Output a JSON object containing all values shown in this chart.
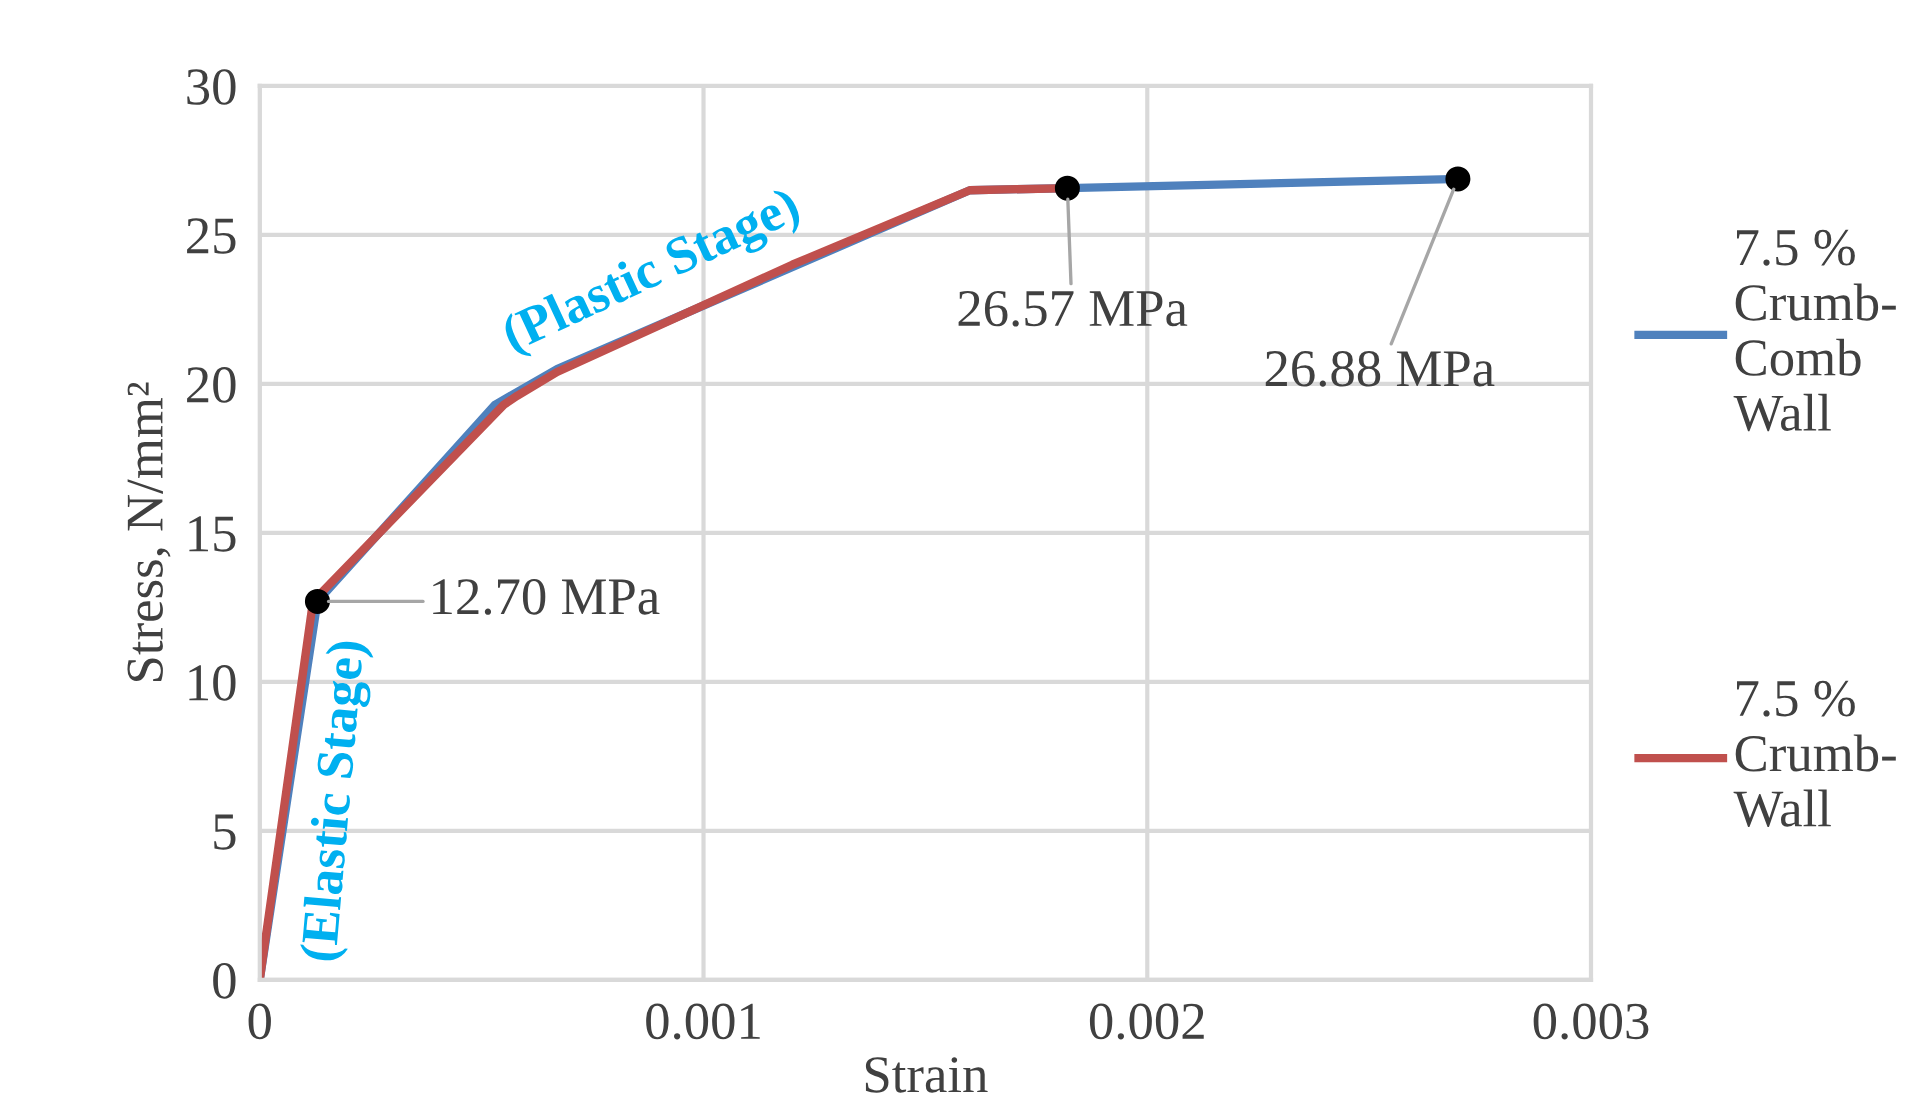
{
  "chart_data": {
    "type": "line",
    "xlabel": "Strain",
    "ylabel": "Stress, N/mm²",
    "xlim": [
      0,
      0.003
    ],
    "xticks": [
      0,
      0.001,
      0.002,
      0.003
    ],
    "ylim": [
      0,
      30
    ],
    "yticks": [
      0,
      5,
      10,
      15,
      20,
      25,
      30
    ],
    "grid": true,
    "legend": "right",
    "marker": "none",
    "line_style": "solid",
    "series": [
      {
        "name": "7.5 % Crumb-Comb Wall",
        "color": "#4f81bd",
        "x": [
          0,
          0.00013,
          0.00053,
          0.00067,
          0.0016,
          0.00182,
          0.0027
        ],
        "values": [
          0,
          12.7,
          19.3,
          20.5,
          26.5,
          26.57,
          26.88
        ]
      },
      {
        "name": "7.5 % Crumb-Wall",
        "color": "#c0504d",
        "x": [
          0,
          0.00012,
          0.00055,
          0.00058,
          0.00067,
          0.0012,
          0.0016,
          0.00182
        ],
        "values": [
          0,
          12.7,
          19.3,
          19.6,
          20.4,
          24.0,
          26.5,
          26.57
        ]
      }
    ],
    "annotations": [
      {
        "text": "12.70 MPa",
        "x": 0.00013,
        "y": 12.7
      },
      {
        "text": "26.57 MPa",
        "x": 0.00182,
        "y": 26.57
      },
      {
        "text": "26.88 MPa",
        "x": 0.0027,
        "y": 26.88
      },
      "(Elastic Stage)",
      "(Plastic Stage)"
    ]
  }
}
